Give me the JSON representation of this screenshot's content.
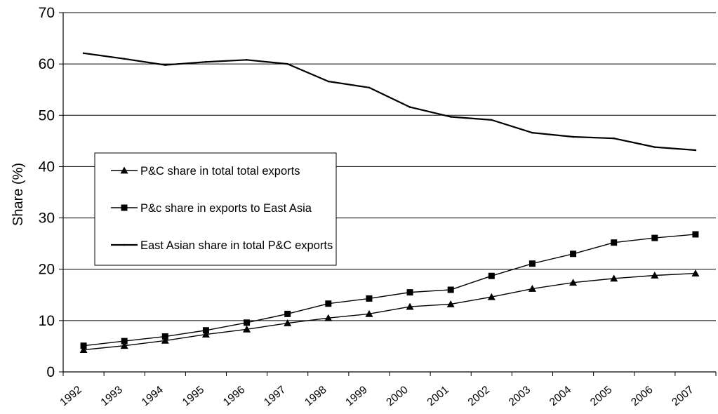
{
  "chart_data": {
    "type": "line",
    "title": "",
    "xlabel": "",
    "ylabel": "Share (%)",
    "ylim": [
      0,
      70
    ],
    "yticks": [
      "0",
      "10",
      "20",
      "30",
      "40",
      "50",
      "60",
      "70"
    ],
    "categories": [
      "1992",
      "1993",
      "1994",
      "1995",
      "1996",
      "1997",
      "1998",
      "1999",
      "2000",
      "2001",
      "2002",
      "2003",
      "2004",
      "2005",
      "2006",
      "2007"
    ],
    "grid": "horizontal",
    "legend_position": "left",
    "series": [
      {
        "name": "P&C share in total total exports",
        "marker": "triangle",
        "values": [
          4.3,
          5.1,
          6.1,
          7.3,
          8.3,
          9.5,
          10.5,
          11.3,
          12.7,
          13.2,
          14.6,
          16.2,
          17.4,
          18.2,
          18.8,
          19.2
        ]
      },
      {
        "name": "P&c share in exports to East Asia",
        "marker": "square",
        "values": [
          5.1,
          6.0,
          6.9,
          8.1,
          9.6,
          11.3,
          13.3,
          14.3,
          15.5,
          16.0,
          18.7,
          21.1,
          23.0,
          25.2,
          26.1,
          26.8
        ]
      },
      {
        "name": "East Asian share in total P&C exports",
        "marker": "none",
        "values": [
          62.1,
          61.0,
          59.8,
          60.4,
          60.8,
          60.0,
          56.6,
          55.4,
          51.6,
          49.7,
          49.1,
          46.6,
          45.8,
          45.5,
          43.8,
          43.2
        ]
      }
    ]
  }
}
